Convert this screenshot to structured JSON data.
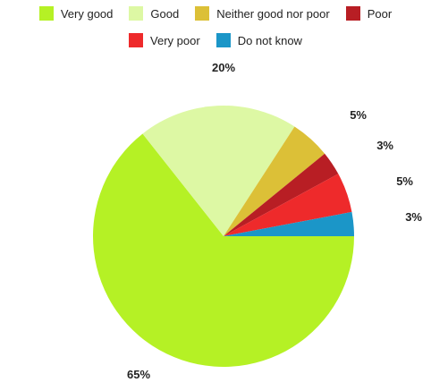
{
  "chart_data": {
    "type": "pie",
    "categories": [
      "Very good",
      "Good",
      "Neither good nor poor",
      "Poor",
      "Very poor",
      "Do not know"
    ],
    "values": [
      65,
      20,
      5,
      3,
      5,
      3
    ],
    "value_labels": [
      "65%",
      "20%",
      "5%",
      "3%",
      "5%",
      "3%"
    ],
    "colors": [
      "#b5f125",
      "#ddf8a4",
      "#dcc037",
      "#b81e24",
      "#ee2a2b",
      "#1b96c8"
    ],
    "legend": {
      "position": "top",
      "rows": [
        [
          0,
          1,
          2,
          3
        ],
        [
          4,
          5
        ]
      ]
    }
  }
}
